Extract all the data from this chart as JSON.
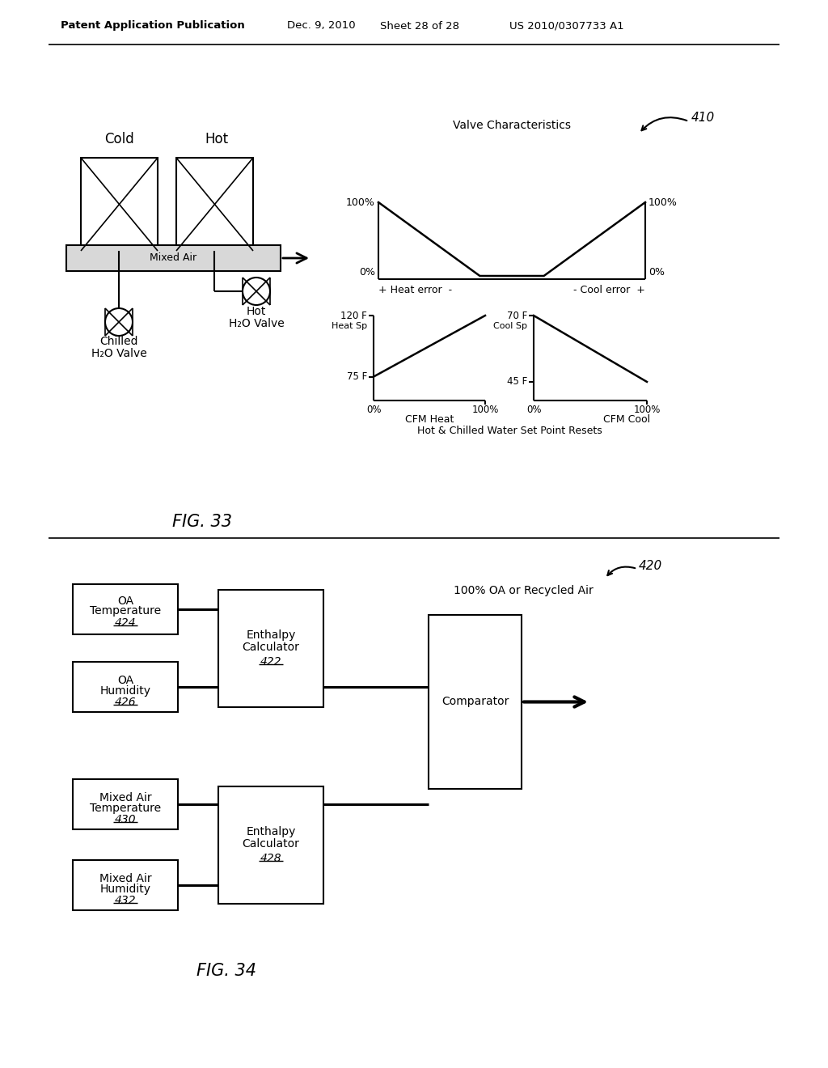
{
  "bg_color": "#ffffff",
  "header_text": "Patent Application Publication",
  "header_date": "Dec. 9, 2010",
  "header_sheet": "Sheet 28 of 28",
  "header_patent": "US 2010/0307733 A1",
  "fig33_label": "FIG. 33",
  "fig34_label": "FIG. 34",
  "ref_410": "410",
  "ref_420": "420"
}
